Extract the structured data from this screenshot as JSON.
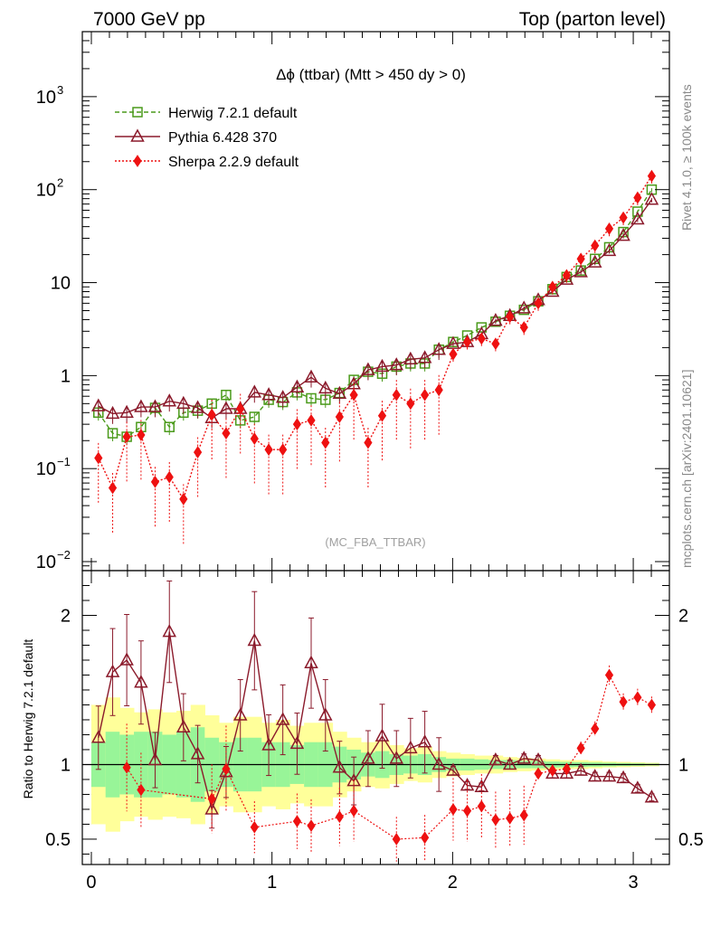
{
  "header": {
    "left": "7000 GeV pp",
    "right": "Top (parton level)"
  },
  "side_labels": {
    "upper": "Rivet 4.1.0, ≥ 100k events",
    "lower": "mcplots.cern.ch [arXiv:2401.10621]"
  },
  "watermark": "(MC_FBA_TTBAR)",
  "chart_data": {
    "type": "line",
    "title": "Δϕ (ttbar) (Mtt > 450 dy > 0)",
    "xlim": [
      -0.05,
      3.2
    ],
    "main": {
      "yscale": "log",
      "ylim": [
        0.008,
        5000
      ],
      "ytick_labels": [
        {
          "base": "10",
          "exp": "−2",
          "value": 0.01
        },
        {
          "base": "10",
          "exp": "−1",
          "value": 0.1
        },
        {
          "base": "1",
          "exp": "",
          "value": 1
        },
        {
          "base": "10",
          "exp": "",
          "value": 10
        },
        {
          "base": "10",
          "exp": "2",
          "value": 100
        },
        {
          "base": "10",
          "exp": "3",
          "value": 1000
        }
      ]
    },
    "ratio": {
      "ylabel": "Ratio to Herwig 7.2.1 default",
      "ylim": [
        0.33,
        2.3
      ],
      "ytick_labels": [
        "0.5",
        "1",
        "2"
      ],
      "yticks": [
        0.5,
        1,
        2
      ]
    },
    "xtick_labels": [
      "0",
      "1",
      "2",
      "3"
    ],
    "xticks": [
      0,
      1,
      2,
      3
    ],
    "x": [
      0.039,
      0.118,
      0.196,
      0.275,
      0.353,
      0.432,
      0.51,
      0.589,
      0.667,
      0.746,
      0.825,
      0.903,
      0.982,
      1.06,
      1.139,
      1.217,
      1.296,
      1.374,
      1.453,
      1.532,
      1.61,
      1.689,
      1.767,
      1.846,
      1.924,
      2.003,
      2.081,
      2.16,
      2.238,
      2.317,
      2.395,
      2.474,
      2.553,
      2.631,
      2.71,
      2.788,
      2.867,
      2.945,
      3.024,
      3.102
    ],
    "series": [
      {
        "name": "Herwig 7.2.1 default",
        "color": "#4a9a1a",
        "style": "dashed-square",
        "values": [
          0.4,
          0.24,
          0.22,
          0.28,
          0.45,
          0.28,
          0.4,
          0.42,
          0.5,
          0.62,
          0.33,
          0.36,
          0.55,
          0.52,
          0.66,
          0.57,
          0.55,
          0.65,
          0.9,
          1.1,
          1.05,
          1.25,
          1.35,
          1.35,
          1.9,
          2.3,
          2.7,
          3.3,
          3.8,
          4.4,
          5.1,
          6.3,
          8.5,
          11.5,
          13.5,
          18.0,
          24.0,
          35.0,
          58.0,
          100.0
        ]
      },
      {
        "name": "Pythia 6.428 370",
        "color": "#8b1a2b",
        "style": "solid-triangle",
        "values": [
          0.47,
          0.39,
          0.4,
          0.46,
          0.46,
          0.53,
          0.5,
          0.45,
          0.35,
          0.44,
          0.44,
          0.66,
          0.62,
          0.58,
          0.75,
          0.96,
          0.73,
          0.64,
          0.81,
          1.15,
          1.25,
          1.3,
          1.5,
          1.55,
          1.9,
          2.2,
          2.3,
          2.8,
          3.9,
          4.4,
          5.3,
          6.5,
          8.0,
          10.8,
          13.0,
          16.5,
          22.0,
          32.0,
          48.0,
          78.0
        ]
      },
      {
        "name": "Sherpa 2.2.9 default",
        "color": "#ee1111",
        "style": "dotted-diamond",
        "values": [
          0.13,
          0.062,
          0.22,
          0.23,
          0.072,
          0.081,
          0.047,
          0.15,
          0.38,
          0.24,
          0.44,
          0.21,
          0.16,
          0.16,
          0.3,
          0.33,
          0.19,
          0.36,
          0.62,
          0.19,
          0.37,
          0.62,
          0.5,
          0.62,
          0.7,
          1.7,
          2.3,
          2.5,
          2.2,
          4.3,
          3.3,
          6.0,
          9.0,
          12.0,
          18.0,
          25.0,
          38.0,
          50.0,
          82.0,
          140.0
        ]
      }
    ],
    "ratio_values": {
      "Pythia 6.428 370": [
        1.18,
        1.62,
        1.7,
        1.55,
        1.03,
        1.89,
        1.25,
        1.07,
        0.7,
        0.95,
        1.33,
        1.83,
        1.13,
        1.3,
        1.14,
        1.68,
        1.33,
        0.98,
        0.89,
        1.04,
        1.19,
        1.04,
        1.11,
        1.15,
        1.0,
        0.96,
        0.86,
        0.85,
        1.03,
        1.0,
        1.04,
        1.03,
        0.94,
        0.94,
        0.96,
        0.92,
        0.92,
        0.91,
        0.84,
        0.78
      ]
    },
    "ratio_sherpa_visible": {
      "x": [
        0.196,
        0.275,
        0.667,
        0.746,
        0.903,
        1.139,
        1.217,
        1.374,
        1.453,
        1.689,
        1.846,
        2.003,
        2.081,
        2.16,
        2.238,
        2.317,
        2.395,
        2.474,
        2.553,
        2.631,
        2.71,
        2.788,
        2.867,
        2.945,
        3.024,
        3.102
      ],
      "values": [
        0.98,
        0.83,
        0.77,
        0.97,
        0.58,
        0.62,
        0.59,
        0.65,
        0.69,
        0.5,
        0.51,
        0.7,
        0.69,
        0.72,
        0.63,
        0.64,
        0.66,
        0.94,
        0.96,
        0.97,
        1.11,
        1.24,
        1.6,
        1.42,
        1.45,
        1.4
      ]
    },
    "bands": {
      "inner_color": "#98f598",
      "outer_color": "#ffff9a",
      "inner_halfwidth": [
        0.15,
        0.22,
        0.2,
        0.22,
        0.22,
        0.2,
        0.22,
        0.25,
        0.18,
        0.15,
        0.18,
        0.18,
        0.15,
        0.15,
        0.13,
        0.15,
        0.15,
        0.12,
        0.1,
        0.08,
        0.09,
        0.07,
        0.06,
        0.07,
        0.05,
        0.04,
        0.04,
        0.035,
        0.03,
        0.03,
        0.025,
        0.025,
        0.02,
        0.018,
        0.016,
        0.014,
        0.012,
        0.01,
        0.008,
        0.006
      ],
      "outer_halfwidth": [
        0.4,
        0.45,
        0.38,
        0.35,
        0.37,
        0.35,
        0.36,
        0.4,
        0.33,
        0.28,
        0.32,
        0.32,
        0.28,
        0.3,
        0.26,
        0.28,
        0.28,
        0.22,
        0.18,
        0.15,
        0.16,
        0.13,
        0.11,
        0.12,
        0.09,
        0.08,
        0.07,
        0.06,
        0.06,
        0.05,
        0.045,
        0.04,
        0.035,
        0.03,
        0.03,
        0.025,
        0.02,
        0.018,
        0.015,
        0.012
      ]
    }
  }
}
